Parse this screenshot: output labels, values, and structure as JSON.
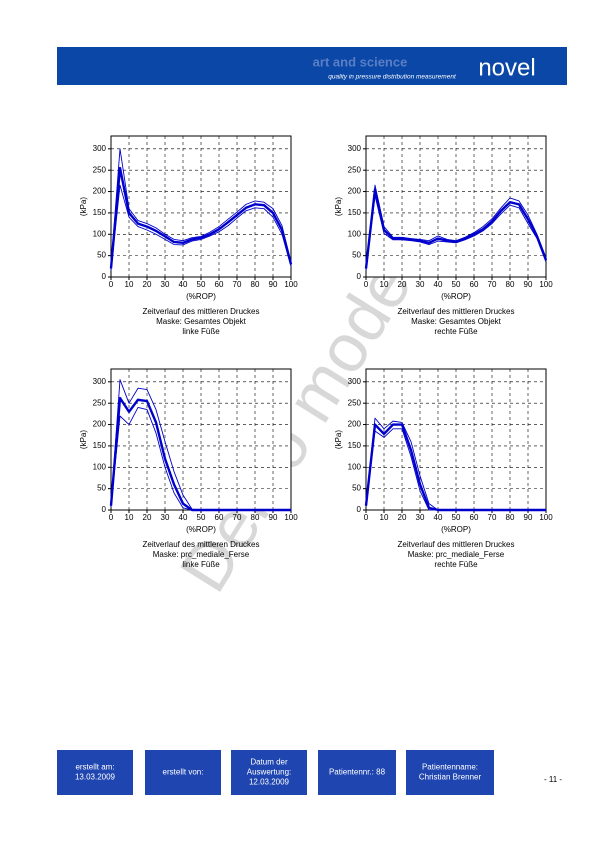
{
  "header": {
    "brand": "art and science",
    "tagline": "quality in pressure distribution measurement",
    "logo": "novel"
  },
  "chart_data": [
    {
      "type": "line",
      "ylabel": "(kPa)",
      "xlabel": "(%ROP)",
      "caption": [
        "Zeitverlauf des mittleren Druckes",
        "Maske: Gesamtes Objekt",
        "linke Füße"
      ],
      "xlim": [
        0,
        100
      ],
      "xticks": [
        0,
        10,
        20,
        30,
        40,
        50,
        60,
        70,
        80,
        90,
        100
      ],
      "ylim": [
        0,
        330
      ],
      "yticks": [
        0,
        50,
        100,
        150,
        200,
        250,
        300
      ],
      "grid": true,
      "x": [
        0,
        5,
        10,
        15,
        20,
        25,
        30,
        35,
        40,
        45,
        50,
        55,
        60,
        65,
        70,
        75,
        80,
        85,
        90,
        95,
        100
      ],
      "series": [
        {
          "color": "#0000cc",
          "values": [
            20,
            255,
            150,
            125,
            118,
            108,
            95,
            82,
            80,
            88,
            92,
            100,
            112,
            128,
            145,
            162,
            170,
            168,
            150,
            110,
            30
          ]
        },
        {
          "color": "#0000cc",
          "values": [
            25,
            300,
            160,
            132,
            125,
            115,
            100,
            88,
            85,
            92,
            95,
            105,
            118,
            135,
            152,
            170,
            178,
            175,
            160,
            120,
            35
          ]
        },
        {
          "color": "#0000cc",
          "values": [
            15,
            215,
            140,
            118,
            110,
            100,
            88,
            76,
            75,
            84,
            88,
            96,
            106,
            120,
            138,
            155,
            162,
            160,
            140,
            100,
            25
          ]
        }
      ]
    },
    {
      "type": "line",
      "ylabel": "(kPa)",
      "xlabel": "(%ROP)",
      "caption": [
        "Zeitverlauf des mittleren Druckes",
        "Maske: Gesamtes Objekt",
        "rechte Füße"
      ],
      "xlim": [
        0,
        100
      ],
      "xticks": [
        0,
        10,
        20,
        30,
        40,
        50,
        60,
        70,
        80,
        90,
        100
      ],
      "ylim": [
        0,
        330
      ],
      "yticks": [
        0,
        50,
        100,
        150,
        200,
        250,
        300
      ],
      "grid": true,
      "x": [
        0,
        5,
        10,
        15,
        20,
        25,
        30,
        35,
        40,
        45,
        50,
        55,
        60,
        65,
        70,
        75,
        80,
        85,
        90,
        95,
        100
      ],
      "series": [
        {
          "color": "#0000cc",
          "values": [
            20,
            205,
            110,
            90,
            90,
            88,
            85,
            80,
            90,
            85,
            82,
            90,
            100,
            112,
            130,
            155,
            175,
            170,
            135,
            95,
            40
          ]
        },
        {
          "color": "#0000cc",
          "values": [
            25,
            215,
            118,
            93,
            93,
            90,
            88,
            85,
            96,
            88,
            85,
            93,
            104,
            118,
            136,
            162,
            185,
            178,
            145,
            100,
            45
          ]
        },
        {
          "color": "#0000cc",
          "values": [
            15,
            190,
            102,
            87,
            87,
            85,
            82,
            76,
            84,
            82,
            80,
            87,
            96,
            108,
            125,
            148,
            168,
            162,
            125,
            90,
            35
          ]
        }
      ]
    },
    {
      "type": "line",
      "ylabel": "(kPa)",
      "xlabel": "(%ROP)",
      "caption": [
        "Zeitverlauf des mittleren Druckes",
        "Maske: prc_mediale_Ferse",
        "linke Füße"
      ],
      "xlim": [
        0,
        100
      ],
      "xticks": [
        0,
        10,
        20,
        30,
        40,
        50,
        60,
        70,
        80,
        90,
        100
      ],
      "ylim": [
        0,
        330
      ],
      "yticks": [
        0,
        50,
        100,
        150,
        200,
        250,
        300
      ],
      "grid": true,
      "x": [
        0,
        5,
        10,
        15,
        20,
        25,
        30,
        35,
        40,
        45,
        50,
        55,
        60,
        65,
        70,
        75,
        80,
        85,
        90,
        95,
        100
      ],
      "series": [
        {
          "color": "#0000cc",
          "values": [
            10,
            262,
            230,
            258,
            255,
            205,
            120,
            60,
            15,
            0,
            0,
            0,
            0,
            0,
            0,
            0,
            0,
            0,
            0,
            0,
            0
          ]
        },
        {
          "color": "#0000cc",
          "values": [
            12,
            305,
            250,
            285,
            282,
            235,
            160,
            90,
            35,
            2,
            0,
            0,
            0,
            0,
            0,
            0,
            0,
            0,
            0,
            0,
            0
          ]
        },
        {
          "color": "#0000cc",
          "values": [
            8,
            220,
            200,
            240,
            235,
            180,
            100,
            40,
            5,
            0,
            0,
            0,
            0,
            0,
            0,
            0,
            0,
            0,
            0,
            0,
            0
          ]
        }
      ]
    },
    {
      "type": "line",
      "ylabel": "(kPa)",
      "xlabel": "(%ROP)",
      "caption": [
        "Zeitverlauf des mittleren Druckes",
        "Maske: prc_mediale_Ferse",
        "rechte Füße"
      ],
      "xlim": [
        0,
        100
      ],
      "xticks": [
        0,
        10,
        20,
        30,
        40,
        50,
        60,
        70,
        80,
        90,
        100
      ],
      "ylim": [
        0,
        330
      ],
      "yticks": [
        0,
        50,
        100,
        150,
        200,
        250,
        300
      ],
      "grid": true,
      "x": [
        0,
        5,
        10,
        15,
        20,
        25,
        30,
        35,
        40,
        45,
        50,
        55,
        60,
        65,
        70,
        75,
        80,
        85,
        90,
        95,
        100
      ],
      "series": [
        {
          "color": "#0000cc",
          "values": [
            10,
            200,
            178,
            200,
            200,
            140,
            60,
            5,
            0,
            0,
            0,
            0,
            0,
            0,
            0,
            0,
            0,
            0,
            0,
            0,
            0
          ]
        },
        {
          "color": "#0000cc",
          "values": [
            12,
            215,
            190,
            208,
            205,
            160,
            80,
            15,
            0,
            0,
            0,
            0,
            0,
            0,
            0,
            0,
            0,
            0,
            0,
            0,
            0
          ]
        },
        {
          "color": "#0000cc",
          "values": [
            8,
            185,
            170,
            190,
            190,
            125,
            45,
            0,
            0,
            0,
            0,
            0,
            0,
            0,
            0,
            0,
            0,
            0,
            0,
            0,
            0
          ]
        }
      ]
    }
  ],
  "watermark": "Demo mode",
  "footer": {
    "boxes": [
      [
        "erstellt am:",
        "13.03.2009"
      ],
      [
        "erstellt von:"
      ],
      [
        "Datum der",
        "Auswertung:",
        "12.03.2009"
      ],
      [
        "Patientennr.: 88"
      ],
      [
        "Patientenname:",
        "Christian Brenner"
      ]
    ],
    "page": "- 11 -"
  }
}
